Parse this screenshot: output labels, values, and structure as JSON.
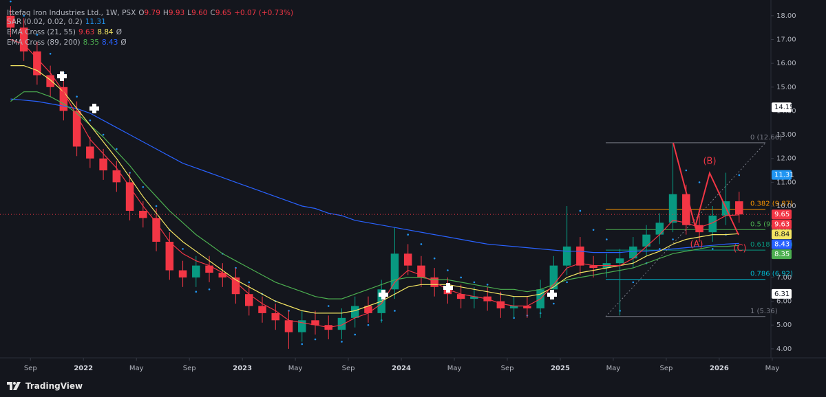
{
  "header": {
    "symbol": "Ittefaq Iron Industries Ltd., 1W, PSX",
    "o_label": "O",
    "o": "9.79",
    "h_label": "H",
    "h": "9.93",
    "l_label": "L",
    "l": "9.60",
    "c_label": "C",
    "c": "9.65",
    "change": "+0.07 (+0.73%)"
  },
  "indicators": [
    {
      "name": "SAR (0.02, 0.02, 0.2)",
      "values": [
        {
          "text": "11.31",
          "color": "#2196f3"
        }
      ]
    },
    {
      "name": "EMA Cross (21, 55)",
      "values": [
        {
          "text": "9.63",
          "color": "#f23645"
        },
        {
          "text": "8.84",
          "color": "#f5e663"
        },
        {
          "text": "Ø",
          "color": "#b2b5be"
        }
      ]
    },
    {
      "name": "EMA Cross (89, 200)",
      "values": [
        {
          "text": "8.35",
          "color": "#4caf50"
        },
        {
          "text": "8.43",
          "color": "#2962ff"
        },
        {
          "text": "Ø",
          "color": "#b2b5be"
        }
      ]
    }
  ],
  "chart_data": {
    "type": "candlestick",
    "x": [
      "2021-07",
      "2021-08",
      "2021-09",
      "2021-10",
      "2021-11",
      "2021-12",
      "2022-01",
      "2022-02",
      "2022-03",
      "2022-04",
      "2022-05",
      "2022-06",
      "2022-07",
      "2022-08",
      "2022-09",
      "2022-10",
      "2022-11",
      "2022-12",
      "2023-01",
      "2023-02",
      "2023-03",
      "2023-04",
      "2023-05",
      "2023-06",
      "2023-07",
      "2023-08",
      "2023-09",
      "2023-10",
      "2023-11",
      "2023-12",
      "2024-01",
      "2024-02",
      "2024-03",
      "2024-04",
      "2024-05",
      "2024-06",
      "2024-07",
      "2024-08",
      "2024-09",
      "2024-10",
      "2024-11",
      "2024-12",
      "2025-01",
      "2025-02",
      "2025-03",
      "2025-04",
      "2025-05",
      "2025-06",
      "2025-07",
      "2025-08",
      "2025-09",
      "2025-10",
      "2025-11",
      "2025-12",
      "2026-01",
      "2026-02"
    ],
    "open": [
      18.0,
      17.5,
      16.5,
      15.5,
      15.0,
      14.0,
      12.5,
      12.0,
      11.5,
      11.0,
      9.8,
      9.5,
      8.5,
      7.3,
      7.0,
      7.5,
      7.2,
      7.0,
      6.3,
      5.8,
      5.5,
      5.2,
      4.7,
      5.2,
      5.0,
      4.8,
      5.3,
      5.8,
      5.5,
      6.5,
      8.0,
      7.5,
      7.0,
      6.6,
      6.3,
      6.1,
      6.2,
      6.0,
      5.7,
      5.8,
      5.7,
      6.5,
      7.5,
      8.3,
      7.5,
      7.4,
      7.6,
      7.8,
      8.3,
      8.8,
      9.3,
      10.5,
      9.2,
      8.9,
      9.6,
      10.2
    ],
    "high": [
      18.4,
      17.9,
      16.9,
      15.9,
      15.4,
      14.4,
      12.9,
      12.4,
      11.9,
      11.4,
      10.2,
      9.9,
      8.9,
      7.7,
      7.9,
      7.9,
      7.6,
      7.4,
      6.7,
      6.2,
      5.9,
      5.6,
      5.6,
      5.6,
      5.4,
      5.7,
      6.2,
      6.2,
      6.9,
      9.1,
      8.4,
      7.9,
      7.4,
      7.0,
      6.7,
      6.6,
      6.6,
      6.4,
      6.2,
      6.2,
      6.9,
      7.9,
      10.0,
      8.7,
      7.9,
      8.0,
      8.2,
      8.7,
      9.2,
      9.7,
      12.66,
      10.9,
      9.6,
      10.0,
      11.4,
      10.6
    ],
    "low": [
      17.1,
      16.1,
      15.1,
      14.6,
      13.6,
      12.1,
      11.6,
      11.1,
      10.6,
      9.4,
      9.1,
      8.1,
      6.9,
      6.6,
      6.6,
      6.8,
      6.6,
      5.9,
      5.4,
      5.1,
      4.8,
      4.0,
      4.3,
      4.6,
      4.4,
      4.4,
      4.9,
      5.1,
      5.1,
      6.1,
      7.1,
      6.6,
      6.2,
      5.9,
      5.7,
      5.7,
      5.6,
      5.3,
      5.3,
      5.3,
      5.3,
      6.1,
      7.1,
      7.1,
      7.0,
      7.0,
      5.4,
      7.4,
      7.9,
      8.4,
      8.9,
      8.8,
      8.5,
      8.5,
      9.2,
      9.3
    ],
    "close": [
      17.5,
      16.5,
      15.5,
      15.0,
      14.0,
      12.5,
      12.0,
      11.5,
      11.0,
      9.8,
      9.5,
      8.5,
      7.3,
      7.0,
      7.5,
      7.2,
      7.0,
      6.3,
      5.8,
      5.5,
      5.2,
      4.7,
      5.2,
      5.0,
      4.8,
      5.3,
      5.8,
      5.5,
      6.5,
      8.0,
      7.5,
      7.0,
      6.6,
      6.3,
      6.1,
      6.2,
      6.0,
      5.7,
      5.8,
      5.7,
      6.5,
      7.5,
      8.3,
      7.5,
      7.4,
      7.6,
      7.8,
      8.3,
      8.8,
      9.3,
      10.5,
      9.2,
      8.9,
      9.6,
      10.2,
      9.65
    ],
    "up_color": "#089981",
    "down_color": "#f23645",
    "series": [
      {
        "name": "SAR",
        "style": "dots",
        "color": "#2196f3",
        "values": [
          18.6,
          18.0,
          17.2,
          16.4,
          15.6,
          14.6,
          13.6,
          13.0,
          12.4,
          11.4,
          10.8,
          10.0,
          9.0,
          8.2,
          6.4,
          6.5,
          8.0,
          7.4,
          6.8,
          6.3,
          6.0,
          5.6,
          4.2,
          4.4,
          5.8,
          4.3,
          4.6,
          5.0,
          5.2,
          5.6,
          8.8,
          8.4,
          7.8,
          7.3,
          7.0,
          6.8,
          6.7,
          6.3,
          5.3,
          5.4,
          5.5,
          5.9,
          6.8,
          9.8,
          9.0,
          8.6,
          5.6,
          6.8,
          7.6,
          8.2,
          8.6,
          11.5,
          11.0,
          8.2,
          8.8,
          11.3
        ]
      },
      {
        "name": "EMA 200",
        "style": "line",
        "color": "#2962ff",
        "values": [
          14.5,
          14.45,
          14.4,
          14.3,
          14.2,
          14.1,
          13.9,
          13.6,
          13.3,
          13.0,
          12.7,
          12.4,
          12.1,
          11.8,
          11.6,
          11.4,
          11.2,
          11.0,
          10.8,
          10.6,
          10.4,
          10.2,
          10.0,
          9.9,
          9.7,
          9.6,
          9.4,
          9.3,
          9.2,
          9.1,
          9.0,
          8.9,
          8.8,
          8.7,
          8.6,
          8.5,
          8.4,
          8.35,
          8.3,
          8.25,
          8.2,
          8.15,
          8.1,
          8.1,
          8.05,
          8.05,
          8.05,
          8.1,
          8.1,
          8.15,
          8.2,
          8.25,
          8.3,
          8.35,
          8.4,
          8.43
        ]
      },
      {
        "name": "EMA 89",
        "style": "line",
        "color": "#4caf50",
        "values": [
          14.4,
          14.8,
          14.8,
          14.6,
          14.3,
          13.9,
          13.4,
          12.9,
          12.3,
          11.7,
          11.0,
          10.4,
          9.8,
          9.3,
          8.8,
          8.4,
          8.0,
          7.7,
          7.4,
          7.1,
          6.8,
          6.6,
          6.4,
          6.2,
          6.1,
          6.1,
          6.3,
          6.5,
          6.7,
          6.9,
          7.0,
          7.0,
          6.9,
          6.9,
          6.8,
          6.7,
          6.6,
          6.5,
          6.5,
          6.4,
          6.5,
          6.7,
          6.9,
          7.0,
          7.1,
          7.2,
          7.3,
          7.4,
          7.6,
          7.8,
          8.0,
          8.1,
          8.2,
          8.3,
          8.3,
          8.35
        ]
      },
      {
        "name": "EMA 55",
        "style": "line",
        "color": "#f5e663",
        "values": [
          15.9,
          15.9,
          15.7,
          15.3,
          14.8,
          14.1,
          13.4,
          12.7,
          12.0,
          11.2,
          10.4,
          9.7,
          9.0,
          8.5,
          8.1,
          7.7,
          7.3,
          6.9,
          6.6,
          6.3,
          6.0,
          5.8,
          5.6,
          5.5,
          5.5,
          5.5,
          5.6,
          5.8,
          6.0,
          6.3,
          6.6,
          6.7,
          6.7,
          6.7,
          6.6,
          6.5,
          6.4,
          6.3,
          6.2,
          6.2,
          6.3,
          6.6,
          7.0,
          7.2,
          7.3,
          7.4,
          7.5,
          7.6,
          7.9,
          8.1,
          8.4,
          8.6,
          8.7,
          8.8,
          8.8,
          8.84
        ]
      },
      {
        "name": "EMA 21",
        "style": "line",
        "color": "#f23645",
        "values": [
          17.0,
          16.8,
          16.2,
          15.6,
          14.8,
          13.8,
          12.8,
          12.2,
          11.6,
          10.8,
          10.0,
          9.3,
          8.5,
          8.0,
          7.7,
          7.5,
          7.2,
          6.8,
          6.3,
          5.9,
          5.6,
          5.2,
          5.1,
          5.0,
          4.9,
          5.0,
          5.3,
          5.5,
          5.9,
          6.8,
          7.3,
          7.1,
          6.8,
          6.5,
          6.3,
          6.2,
          6.1,
          5.9,
          5.8,
          5.8,
          6.1,
          6.7,
          7.4,
          7.6,
          7.5,
          7.5,
          7.5,
          7.8,
          8.3,
          8.8,
          9.4,
          9.3,
          9.1,
          9.3,
          9.6,
          9.63
        ]
      }
    ],
    "xlim": [
      "2021-06-22",
      "2026-06-07"
    ],
    "xticks": [
      {
        "value": "2021-09",
        "label": "Sep"
      },
      {
        "value": "2022-01",
        "label": "2022"
      },
      {
        "value": "2022-05",
        "label": "May"
      },
      {
        "value": "2022-09",
        "label": "Sep"
      },
      {
        "value": "2023-01",
        "label": "2023"
      },
      {
        "value": "2023-05",
        "label": "May"
      },
      {
        "value": "2023-09",
        "label": "Sep"
      },
      {
        "value": "2024-01",
        "label": "2024"
      },
      {
        "value": "2024-05",
        "label": "May"
      },
      {
        "value": "2024-09",
        "label": "Sep"
      },
      {
        "value": "2025-01",
        "label": "2025"
      },
      {
        "value": "2025-05",
        "label": "May"
      },
      {
        "value": "2025-09",
        "label": "Sep"
      },
      {
        "value": "2026-01",
        "label": "2026"
      },
      {
        "value": "2026-05",
        "label": "May"
      }
    ],
    "ylim": [
      3.65,
      18.66
    ],
    "yticks": [
      {
        "value": 4,
        "label": "4.00"
      },
      {
        "value": 5,
        "label": "5.00"
      },
      {
        "value": 6,
        "label": "6.00"
      },
      {
        "value": 7,
        "label": "7.00"
      },
      {
        "value": 8,
        "label": "8.00"
      },
      {
        "value": 9,
        "label": "9.00"
      },
      {
        "value": 10,
        "label": "10.00"
      },
      {
        "value": 11,
        "label": "11.00"
      },
      {
        "value": 12,
        "label": "12.00"
      },
      {
        "value": 13,
        "label": "13.00"
      },
      {
        "value": 14,
        "label": "14.00"
      },
      {
        "value": 15,
        "label": "15.00"
      },
      {
        "value": 16,
        "label": "16.00"
      },
      {
        "value": 17,
        "label": "17.00"
      },
      {
        "value": 18,
        "label": "18.00"
      }
    ],
    "price_labels": [
      {
        "value": 14.15,
        "color": "#ffffff",
        "text_color": "#131722"
      },
      {
        "value": 11.31,
        "color": "#2196f3",
        "text_color": "#ffffff"
      },
      {
        "value": 9.65,
        "color": "#f23645",
        "text_color": "#ffffff"
      },
      {
        "value": 9.63,
        "color": "#f23645",
        "text_color": "#ffffff"
      },
      {
        "value": 8.84,
        "color": "#f5e663",
        "text_color": "#131722"
      },
      {
        "value": 8.43,
        "color": "#2962ff",
        "text_color": "#ffffff"
      },
      {
        "value": 8.35,
        "color": "#4caf50",
        "text_color": "#ffffff"
      },
      {
        "value": 6.31,
        "color": "#ffffff",
        "text_color": "#131722"
      }
    ],
    "fib_levels": [
      {
        "label": "0 (12.66)",
        "value": 12.66,
        "color": "#787b86"
      },
      {
        "label": "0.382 (9.87)",
        "value": 9.87,
        "color": "#ff9800"
      },
      {
        "label": "0.5 (9.01)",
        "value": 9.01,
        "color": "#4caf50"
      },
      {
        "label": "0.618 (8.15)",
        "value": 8.15,
        "color": "#089981"
      },
      {
        "label": "0.786 (6.92)",
        "value": 6.92,
        "color": "#00bcd4"
      },
      {
        "label": "1 (5.36)",
        "value": 5.36,
        "color": "#787b86"
      }
    ],
    "wave_labels": [
      "(A)",
      "(B)",
      "(C)"
    ]
  },
  "footer": {
    "brand": "TradingView"
  }
}
